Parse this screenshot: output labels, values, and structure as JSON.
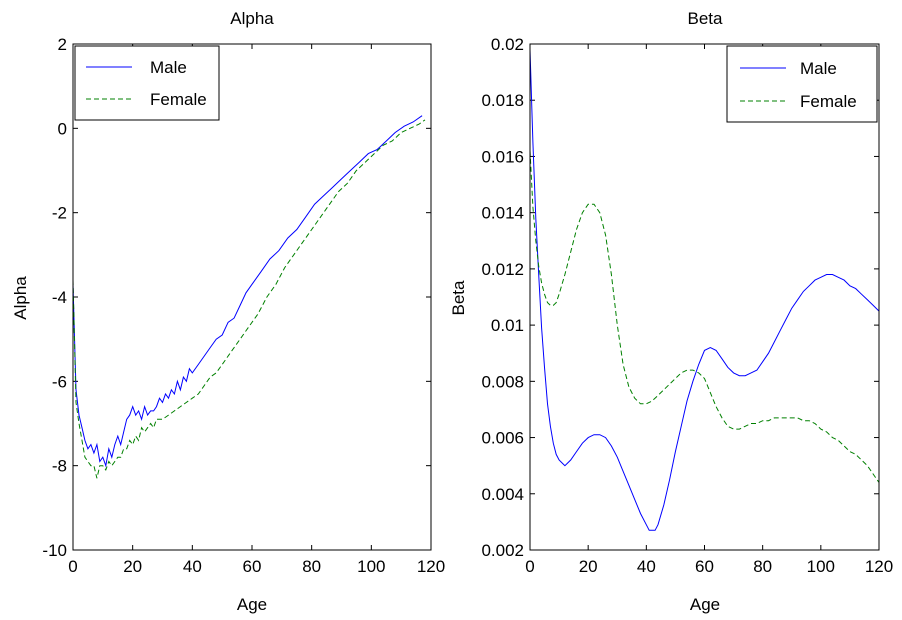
{
  "chart_data": [
    {
      "type": "line",
      "title": "Alpha",
      "xlabel": "Age",
      "ylabel": "Alpha",
      "xlim": [
        0,
        120
      ],
      "ylim": [
        -10,
        2
      ],
      "xticks": [
        0,
        20,
        40,
        60,
        80,
        100,
        120
      ],
      "xtick_labels": [
        "0",
        "20",
        "40",
        "60",
        "80",
        "100",
        "120"
      ],
      "yticks": [
        -10,
        -8,
        -6,
        -4,
        -2,
        0,
        2
      ],
      "ytick_labels": [
        "-10",
        "-8",
        "-6",
        "-4",
        "-2",
        "0",
        "2"
      ],
      "grid": false,
      "legend_position": "top-left",
      "series": [
        {
          "name": "Male",
          "color": "#0000ff",
          "dash": "solid",
          "x": [
            0,
            1,
            2,
            3,
            4,
            5,
            6,
            7,
            8,
            9,
            10,
            11,
            12,
            13,
            14,
            15,
            16,
            17,
            18,
            19,
            20,
            21,
            22,
            23,
            24,
            25,
            26,
            27,
            28,
            29,
            30,
            31,
            32,
            33,
            34,
            35,
            36,
            37,
            38,
            39,
            40,
            42,
            44,
            46,
            48,
            50,
            52,
            54,
            56,
            58,
            60,
            63,
            66,
            69,
            72,
            75,
            78,
            81,
            84,
            87,
            90,
            93,
            96,
            99,
            102,
            105,
            108,
            111,
            114,
            117
          ],
          "y": [
            -3.7,
            -6.2,
            -6.8,
            -7.1,
            -7.4,
            -7.6,
            -7.5,
            -7.7,
            -7.5,
            -7.9,
            -7.8,
            -8.0,
            -7.6,
            -7.8,
            -7.5,
            -7.3,
            -7.5,
            -7.2,
            -6.9,
            -6.8,
            -6.6,
            -6.8,
            -6.7,
            -6.9,
            -6.6,
            -6.8,
            -6.7,
            -6.7,
            -6.6,
            -6.4,
            -6.5,
            -6.3,
            -6.4,
            -6.2,
            -6.3,
            -6.0,
            -6.2,
            -5.9,
            -6.0,
            -5.7,
            -5.8,
            -5.6,
            -5.4,
            -5.2,
            -5.0,
            -4.9,
            -4.6,
            -4.5,
            -4.2,
            -3.9,
            -3.7,
            -3.4,
            -3.1,
            -2.9,
            -2.6,
            -2.4,
            -2.1,
            -1.8,
            -1.6,
            -1.4,
            -1.2,
            -1.0,
            -0.8,
            -0.6,
            -0.5,
            -0.3,
            -0.1,
            0.05,
            0.15,
            0.3
          ]
        },
        {
          "name": "Female",
          "color": "#008000",
          "dash": "dashed",
          "x": [
            0,
            1,
            2,
            3,
            4,
            5,
            6,
            7,
            8,
            9,
            10,
            11,
            12,
            13,
            14,
            15,
            16,
            17,
            18,
            19,
            20,
            21,
            22,
            23,
            24,
            25,
            26,
            27,
            28,
            29,
            30,
            32,
            34,
            36,
            38,
            40,
            42,
            44,
            46,
            48,
            50,
            53,
            56,
            59,
            62,
            65,
            68,
            71,
            74,
            77,
            80,
            83,
            86,
            89,
            92,
            95,
            98,
            101,
            104,
            107,
            110,
            113,
            116,
            118
          ],
          "y": [
            -3.6,
            -6.5,
            -7.0,
            -7.4,
            -7.8,
            -7.9,
            -8.0,
            -8.0,
            -8.3,
            -8.0,
            -8.0,
            -8.1,
            -7.9,
            -8.0,
            -7.9,
            -7.8,
            -7.8,
            -7.6,
            -7.6,
            -7.4,
            -7.5,
            -7.3,
            -7.4,
            -7.1,
            -7.2,
            -7.1,
            -7.0,
            -7.1,
            -6.9,
            -6.9,
            -6.9,
            -6.8,
            -6.7,
            -6.6,
            -6.5,
            -6.4,
            -6.3,
            -6.1,
            -5.9,
            -5.8,
            -5.6,
            -5.3,
            -5.0,
            -4.7,
            -4.4,
            -4.0,
            -3.7,
            -3.3,
            -3.0,
            -2.7,
            -2.4,
            -2.1,
            -1.8,
            -1.5,
            -1.3,
            -1.0,
            -0.8,
            -0.6,
            -0.4,
            -0.3,
            -0.1,
            0.0,
            0.1,
            0.2
          ]
        }
      ]
    },
    {
      "type": "line",
      "title": "Beta",
      "xlabel": "Age",
      "ylabel": "Beta",
      "xlim": [
        0,
        120
      ],
      "ylim": [
        0.002,
        0.02
      ],
      "xticks": [
        0,
        20,
        40,
        60,
        80,
        100,
        120
      ],
      "xtick_labels": [
        "0",
        "20",
        "40",
        "60",
        "80",
        "100",
        "120"
      ],
      "yticks": [
        0.002,
        0.004,
        0.006,
        0.008,
        0.01,
        0.012,
        0.014,
        0.016,
        0.018,
        0.02
      ],
      "ytick_labels": [
        "0.002",
        "0.004",
        "0.006",
        "0.008",
        "0.01",
        "0.012",
        "0.014",
        "0.016",
        "0.018",
        "0.02"
      ],
      "grid": false,
      "legend_position": "top-right",
      "series": [
        {
          "name": "Male",
          "color": "#0000ff",
          "dash": "solid",
          "x": [
            0,
            1,
            2,
            3,
            4,
            5,
            6,
            7,
            8,
            9,
            10,
            11,
            12,
            13,
            14,
            16,
            18,
            20,
            22,
            24,
            26,
            28,
            30,
            32,
            34,
            36,
            38,
            40,
            41,
            42,
            43,
            44,
            46,
            48,
            50,
            52,
            54,
            56,
            58,
            60,
            62,
            64,
            66,
            68,
            70,
            72,
            74,
            76,
            78,
            80,
            82,
            84,
            86,
            88,
            90,
            92,
            94,
            96,
            98,
            100,
            102,
            104,
            106,
            108,
            110,
            112,
            114,
            116,
            118,
            120
          ],
          "y": [
            0.0198,
            0.0165,
            0.0138,
            0.0118,
            0.0099,
            0.0085,
            0.0072,
            0.0064,
            0.0058,
            0.0054,
            0.0052,
            0.0051,
            0.005,
            0.0051,
            0.0052,
            0.0055,
            0.0058,
            0.006,
            0.0061,
            0.0061,
            0.006,
            0.0057,
            0.0053,
            0.0048,
            0.0043,
            0.0038,
            0.0033,
            0.0029,
            0.0027,
            0.0027,
            0.0027,
            0.0029,
            0.0036,
            0.0045,
            0.0055,
            0.0064,
            0.0073,
            0.008,
            0.0086,
            0.0091,
            0.0092,
            0.0091,
            0.0088,
            0.0085,
            0.0083,
            0.0082,
            0.0082,
            0.0083,
            0.0084,
            0.0087,
            0.009,
            0.0094,
            0.0098,
            0.0102,
            0.0106,
            0.0109,
            0.0112,
            0.0114,
            0.0116,
            0.0117,
            0.0118,
            0.0118,
            0.0117,
            0.0116,
            0.0114,
            0.0113,
            0.0111,
            0.0109,
            0.0107,
            0.0105
          ]
        },
        {
          "name": "Female",
          "color": "#008000",
          "dash": "dashed",
          "x": [
            0,
            1,
            2,
            3,
            4,
            5,
            6,
            7,
            8,
            9,
            10,
            12,
            14,
            16,
            18,
            20,
            22,
            24,
            26,
            28,
            30,
            32,
            34,
            36,
            38,
            40,
            42,
            44,
            46,
            48,
            50,
            52,
            54,
            56,
            58,
            60,
            62,
            64,
            66,
            68,
            70,
            72,
            74,
            76,
            78,
            80,
            82,
            84,
            86,
            88,
            90,
            92,
            94,
            96,
            98,
            100,
            102,
            104,
            106,
            108,
            110,
            112,
            114,
            116,
            118,
            120
          ],
          "y": [
            0.0162,
            0.0142,
            0.013,
            0.0121,
            0.0115,
            0.0111,
            0.0108,
            0.0107,
            0.0107,
            0.0108,
            0.0111,
            0.0118,
            0.0126,
            0.0134,
            0.014,
            0.0143,
            0.0143,
            0.014,
            0.0132,
            0.0118,
            0.01,
            0.0086,
            0.0078,
            0.0074,
            0.0072,
            0.0072,
            0.0073,
            0.0075,
            0.0077,
            0.0079,
            0.0081,
            0.0083,
            0.0084,
            0.0084,
            0.0083,
            0.0081,
            0.0076,
            0.0071,
            0.0067,
            0.0064,
            0.0063,
            0.0063,
            0.0064,
            0.0065,
            0.0065,
            0.0066,
            0.0066,
            0.0067,
            0.0067,
            0.0067,
            0.0067,
            0.0067,
            0.0066,
            0.0066,
            0.0065,
            0.0063,
            0.0062,
            0.006,
            0.0059,
            0.0057,
            0.0055,
            0.0054,
            0.0052,
            0.005,
            0.0047,
            0.0044
          ]
        }
      ]
    }
  ]
}
